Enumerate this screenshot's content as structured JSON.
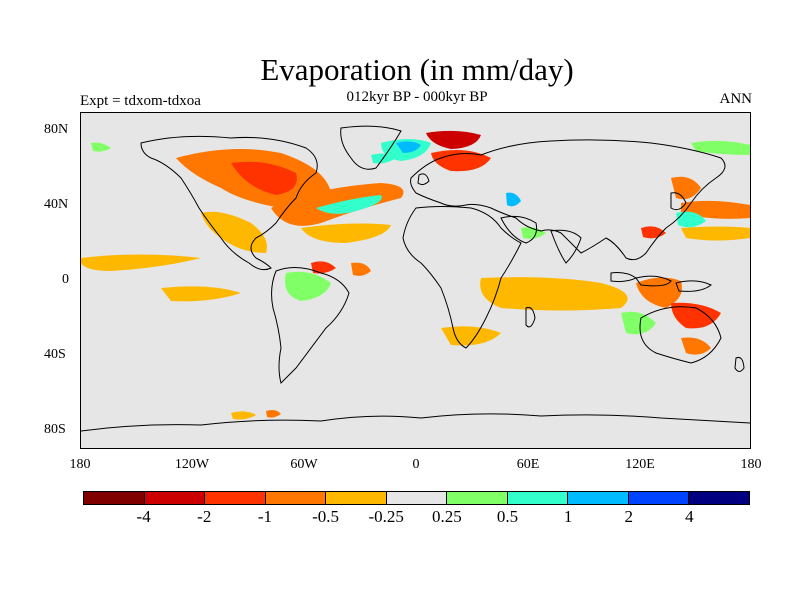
{
  "figure": {
    "title": "Evaporation (in mm/day)",
    "subtitle": "012kyr BP - 000kyr BP",
    "left_label": "Expt = tdxom-tdxoa",
    "right_label": "ANN"
  },
  "map": {
    "projection": "cylindrical-equidistant",
    "lon_range": [
      -180,
      180
    ],
    "lat_range": [
      -90,
      90
    ],
    "background_color": "#e6e6e6",
    "coastline_color": "#000000",
    "x_ticks": [
      "180",
      "120W",
      "60W",
      "0",
      "60E",
      "120E",
      "180"
    ],
    "y_ticks": [
      "80N",
      "40N",
      "0",
      "40S",
      "80S"
    ]
  },
  "colorbar": {
    "colors": [
      "#800000",
      "#cc0000",
      "#ff3300",
      "#ff7700",
      "#ffb800",
      "#e6e6e6",
      "#80ff66",
      "#33ffcc",
      "#00bbff",
      "#0044ff",
      "#000080"
    ],
    "labels": [
      "-4",
      "-2",
      "-1",
      "-0.5",
      "-0.25",
      "0.25",
      "0.5",
      "1",
      "2",
      "4"
    ]
  }
}
